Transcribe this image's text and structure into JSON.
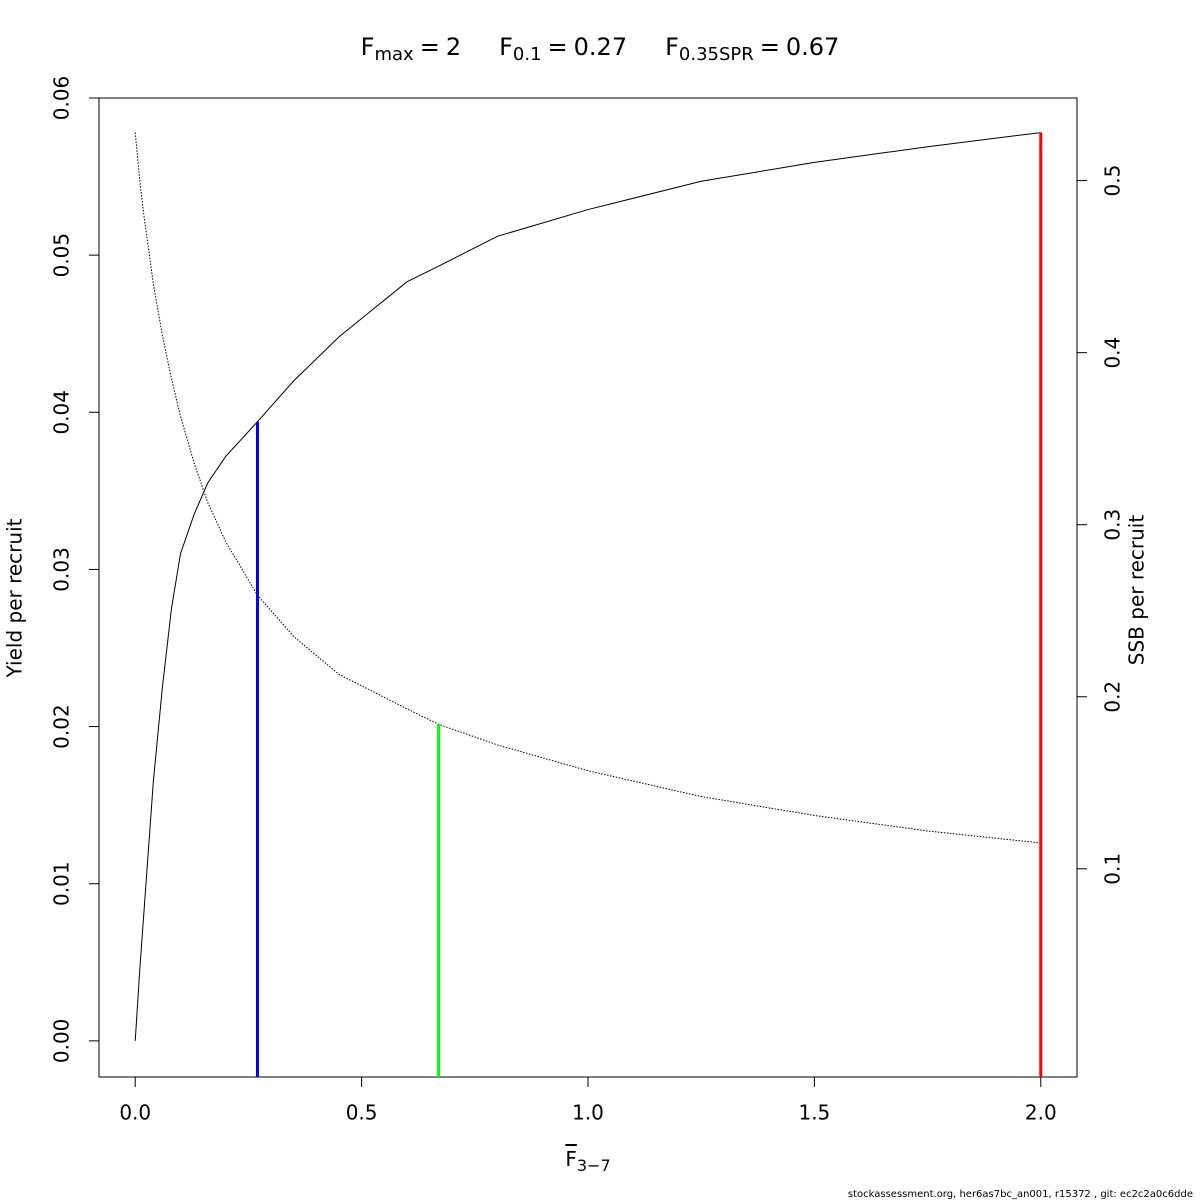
{
  "chart_data": {
    "type": "line",
    "title_items": [
      {
        "symbol": "F",
        "subscript": "max",
        "operator": "=",
        "value": 2,
        "color": "#ff0000",
        "top": 0.0578,
        "axis": "y"
      },
      {
        "symbol": "F",
        "subscript": "0.1",
        "operator": "=",
        "value": 0.27,
        "color": "#0000ff",
        "top": 0.0394,
        "axis": "y"
      },
      {
        "symbol": "F",
        "subscript": "0.35SPR",
        "operator": "=",
        "value": 0.67,
        "color": "#00ff00",
        "top": 0.184,
        "axis": "y2"
      }
    ],
    "x_label": {
      "symbol": "F",
      "subscript": "3−7"
    },
    "y_label": "Yield per recruit",
    "y2_label": "SSB per recruit",
    "footer": "stockassessment.org, her6as7bc_an001, r15372 , git: ec2c2a0c6dde",
    "x": [
      0,
      0.01,
      0.02,
      0.04,
      0.06,
      0.08,
      0.1,
      0.13,
      0.16,
      0.2,
      0.27,
      0.35,
      0.45,
      0.6,
      0.67,
      0.8,
      1.0,
      1.25,
      1.5,
      1.75,
      2.0
    ],
    "series": [
      {
        "color": "#000000",
        "dash": "solid",
        "axis": "y",
        "values": [
          0,
          0.0045,
          0.0085,
          0.0165,
          0.0225,
          0.0275,
          0.031,
          0.0335,
          0.0355,
          0.0372,
          0.0394,
          0.042,
          0.0448,
          0.0483,
          0.0493,
          0.0512,
          0.0529,
          0.0547,
          0.0559,
          0.0569,
          0.0578
        ]
      },
      {
        "color": "#000000",
        "dash": "dotted",
        "axis": "y2",
        "values": [
          0.528,
          0.5,
          0.478,
          0.44,
          0.41,
          0.385,
          0.363,
          0.336,
          0.313,
          0.29,
          0.259,
          0.235,
          0.213,
          0.193,
          0.184,
          0.172,
          0.157,
          0.142,
          0.131,
          0.122,
          0.115
        ]
      }
    ],
    "xlim": [
      -0.08,
      2.08
    ],
    "xticks": [
      {
        "value": 0,
        "label": "0.0"
      },
      0.5,
      {
        "value": 1,
        "label": "1.0"
      },
      1.5,
      {
        "value": 2,
        "label": "2.0"
      }
    ],
    "ylim": [
      -0.0023,
      0.06
    ],
    "yticks": [
      {
        "value": 0,
        "label": "0.00"
      },
      {
        "value": 0.01,
        "label": "0.01"
      },
      {
        "value": 0.02,
        "label": "0.02"
      },
      {
        "value": 0.03,
        "label": "0.03"
      },
      {
        "value": 0.04,
        "label": "0.04"
      },
      {
        "value": 0.05,
        "label": "0.05"
      },
      {
        "value": 0.06,
        "label": "0.06"
      }
    ],
    "y2lim": [
      -0.021,
      0.548
    ],
    "y2ticks": [
      0.1,
      0.2,
      0.3,
      0.4,
      0.5
    ]
  }
}
